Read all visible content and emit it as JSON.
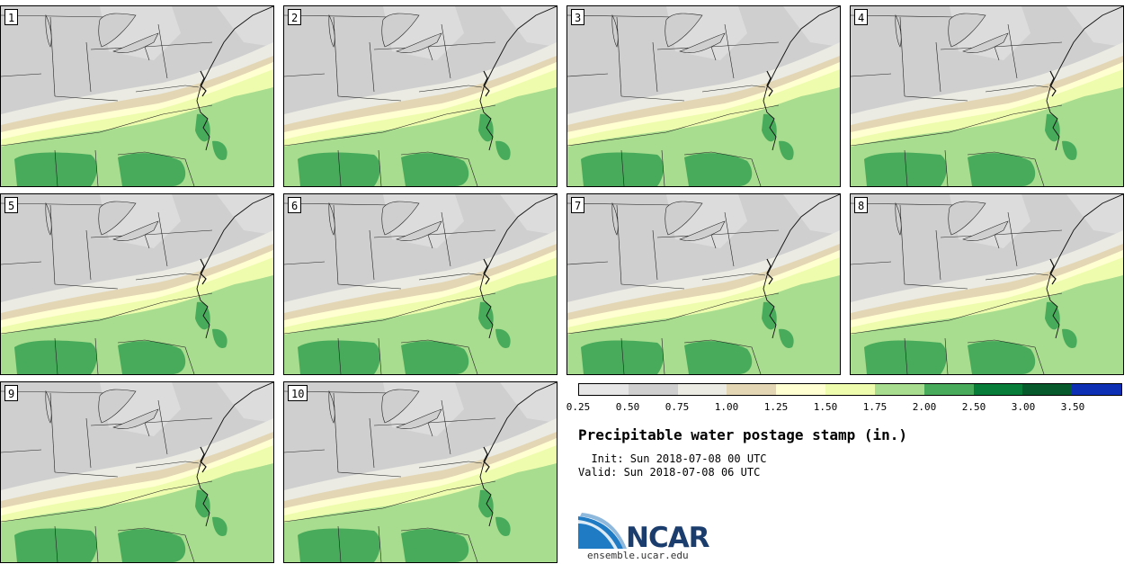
{
  "panels": [
    {
      "label": "1"
    },
    {
      "label": "2"
    },
    {
      "label": "3"
    },
    {
      "label": "4"
    },
    {
      "label": "5"
    },
    {
      "label": "6"
    },
    {
      "label": "7"
    },
    {
      "label": "8"
    },
    {
      "label": "9"
    },
    {
      "label": "10"
    }
  ],
  "legend": {
    "colors": [
      "#e6e6e6",
      "#cfcfcf",
      "#ebebe3",
      "#e2d6b4",
      "#ffffd2",
      "#eefcae",
      "#a8dc8e",
      "#47ab5b",
      "#087d3a",
      "#065a2b",
      "#0c2fb4"
    ],
    "ticks": [
      "0.25",
      "0.50",
      "0.75",
      "1.00",
      "1.25",
      "1.50",
      "1.75",
      "2.00",
      "2.50",
      "3.00",
      "3.50"
    ],
    "title": "Precipitable water postage stamp (in.)",
    "init": "  Init: Sun 2018-07-08 00 UTC",
    "valid": "Valid: Sun 2018-07-08 06 UTC"
  },
  "branding": {
    "logo_text": "NCAR",
    "url": "ensemble.ucar.edu",
    "logo_color": "#1b3d6e"
  }
}
